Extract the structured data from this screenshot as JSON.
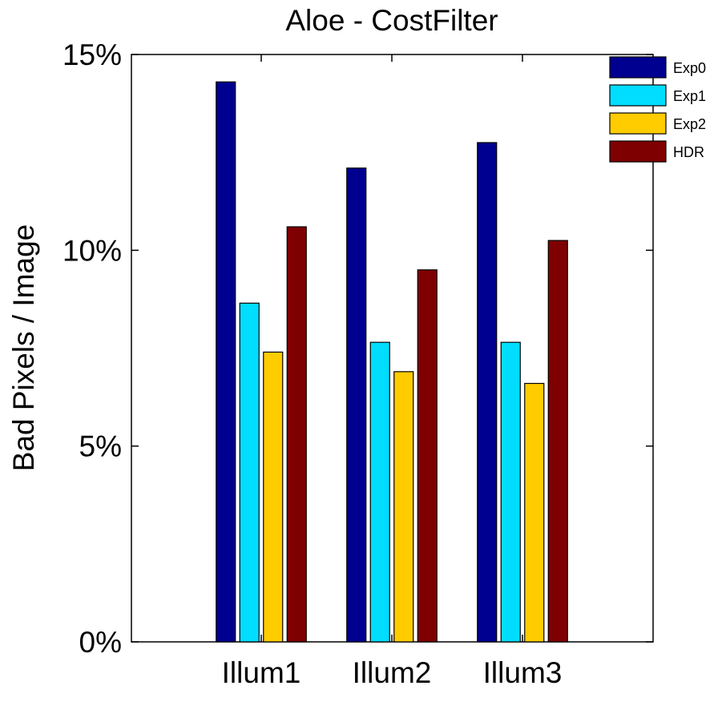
{
  "chart_data": {
    "type": "bar",
    "title": "Aloe - CostFilter",
    "xlabel": "",
    "ylabel": "Bad Pixels / Image",
    "categories": [
      "Illum1",
      "Illum2",
      "Illum3"
    ],
    "series": [
      {
        "name": "Exp0",
        "color": "#000090",
        "values": [
          14.3,
          12.1,
          12.75
        ]
      },
      {
        "name": "Exp1",
        "color": "#00DDFF",
        "values": [
          8.65,
          7.65,
          7.65
        ]
      },
      {
        "name": "Exp2",
        "color": "#FFCC00",
        "values": [
          7.4,
          6.9,
          6.6
        ]
      },
      {
        "name": "HDR",
        "color": "#7F0000",
        "values": [
          10.6,
          9.5,
          10.25
        ]
      }
    ],
    "ylim": [
      0,
      15
    ],
    "yticks": [
      0,
      5,
      10,
      15
    ],
    "ytick_labels": [
      "0%",
      "5%",
      "10%",
      "15%"
    ],
    "grid": false,
    "legend_position": "top-right"
  }
}
